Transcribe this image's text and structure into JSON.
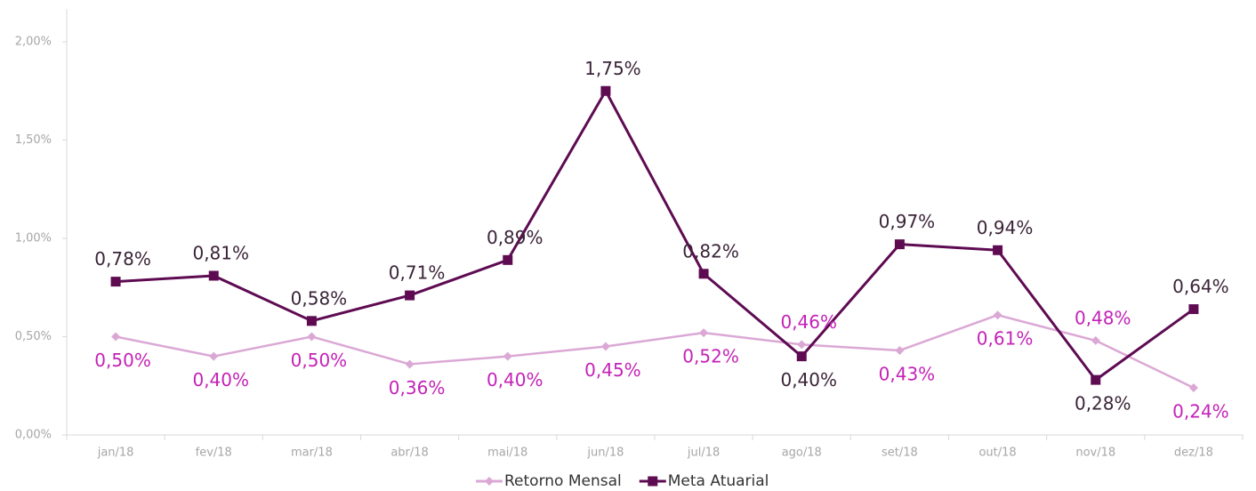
{
  "chart_data": {
    "type": "line",
    "categories": [
      "jan/18",
      "fev/18",
      "mar/18",
      "abr/18",
      "mai/18",
      "jun/18",
      "jul/18",
      "ago/18",
      "set/18",
      "out/18",
      "nov/18",
      "dez/18"
    ],
    "series": [
      {
        "name": "Retorno Mensal",
        "color": "#dba8d5",
        "label_color": "#c422b7",
        "marker": "diamond",
        "values": [
          0.5,
          0.4,
          0.5,
          0.36,
          0.4,
          0.45,
          0.52,
          0.46,
          0.43,
          0.61,
          0.48,
          0.24
        ],
        "value_labels": [
          "0,50%",
          "0,40%",
          "0,50%",
          "0,36%",
          "0,40%",
          "0,45%",
          "0,52%",
          "0,46%",
          "0,43%",
          "0,61%",
          "0,48%",
          "0,24%"
        ]
      },
      {
        "name": "Meta Atuarial",
        "color": "#5e0b52",
        "label_color": "#3a2438",
        "marker": "square",
        "values": [
          0.78,
          0.81,
          0.58,
          0.71,
          0.89,
          1.75,
          0.82,
          0.4,
          0.97,
          0.94,
          0.28,
          0.64
        ],
        "value_labels": [
          "0,78%",
          "0,81%",
          "0,58%",
          "0,71%",
          "0,89%",
          "1,75%",
          "0,82%",
          "0,40%",
          "0,97%",
          "0,94%",
          "0,28%",
          "0,64%"
        ]
      }
    ],
    "ylim": [
      0,
      2
    ],
    "yticks": [
      {
        "value": 0,
        "label": "0,00%"
      },
      {
        "value": 0.5,
        "label": "0,50%"
      },
      {
        "value": 1,
        "label": "1,00%"
      },
      {
        "value": 1.5,
        "label": "1,50%"
      },
      {
        "value": 2,
        "label": "2,00%"
      }
    ],
    "grid": false,
    "legend": "bottom"
  }
}
